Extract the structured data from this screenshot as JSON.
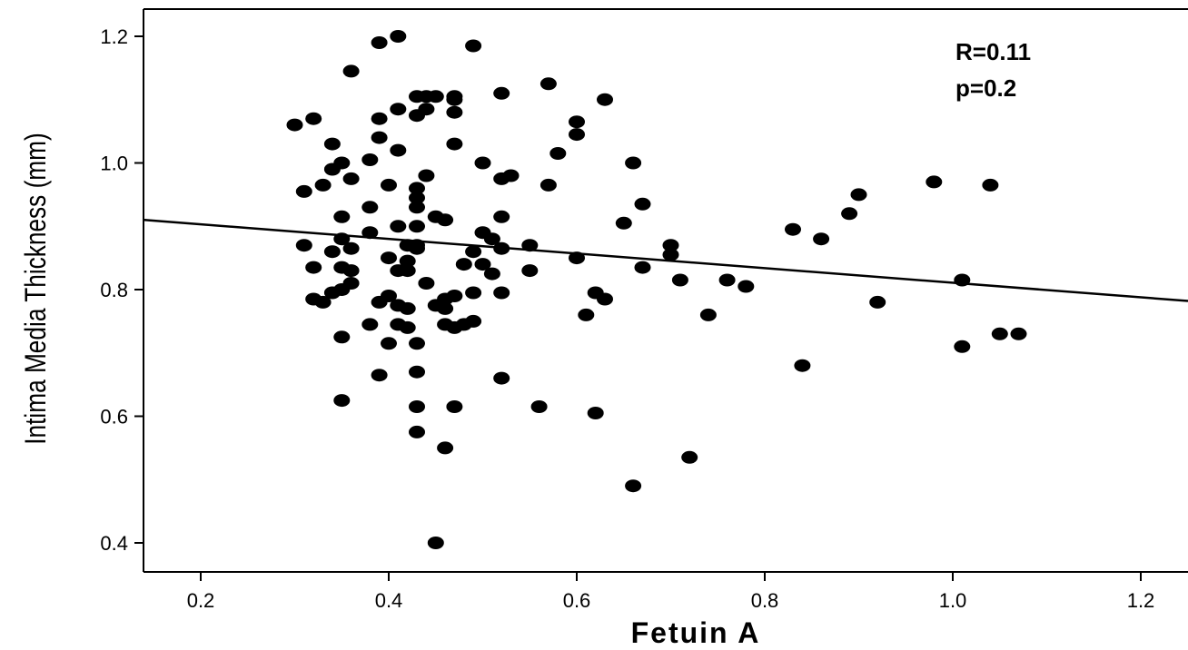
{
  "chart_data": {
    "type": "scatter",
    "xlabel": "Fetuin A",
    "ylabel": "Intima Media Thickness (mm)",
    "xlim": [
      0.14,
      1.26
    ],
    "ylim": [
      0.36,
      1.22
    ],
    "x_ticks": [
      0.2,
      0.4,
      0.6,
      0.8,
      1.0,
      1.2
    ],
    "y_ticks": [
      0.4,
      0.6,
      0.8,
      1.0,
      1.2
    ],
    "x_tick_labels": [
      "0.2",
      "0.4",
      "0.6",
      "0.8",
      "1.0",
      "1.2"
    ],
    "y_tick_labels": [
      "0.4",
      "0.6",
      "0.8",
      "1.0",
      "1.2"
    ],
    "grid": false,
    "annotations": [
      "R=0.11",
      "p=0.2"
    ],
    "fit_line": {
      "x": [
        0.14,
        1.26
      ],
      "y": [
        0.91,
        0.782
      ]
    },
    "points": [
      [
        0.3,
        1.06
      ],
      [
        0.32,
        1.07
      ],
      [
        0.31,
        0.955
      ],
      [
        0.33,
        0.965
      ],
      [
        0.34,
        1.03
      ],
      [
        0.34,
        0.99
      ],
      [
        0.35,
        1.0
      ],
      [
        0.36,
        1.145
      ],
      [
        0.36,
        0.975
      ],
      [
        0.35,
        0.915
      ],
      [
        0.31,
        0.87
      ],
      [
        0.32,
        0.835
      ],
      [
        0.34,
        0.86
      ],
      [
        0.35,
        0.88
      ],
      [
        0.36,
        0.865
      ],
      [
        0.35,
        0.835
      ],
      [
        0.36,
        0.83
      ],
      [
        0.36,
        0.81
      ],
      [
        0.35,
        0.8
      ],
      [
        0.34,
        0.795
      ],
      [
        0.32,
        0.785
      ],
      [
        0.33,
        0.78
      ],
      [
        0.35,
        0.725
      ],
      [
        0.35,
        0.625
      ],
      [
        0.38,
        1.005
      ],
      [
        0.38,
        0.93
      ],
      [
        0.38,
        0.89
      ],
      [
        0.39,
        1.19
      ],
      [
        0.39,
        1.07
      ],
      [
        0.39,
        1.04
      ],
      [
        0.4,
        0.965
      ],
      [
        0.4,
        0.85
      ],
      [
        0.4,
        0.79
      ],
      [
        0.39,
        0.78
      ],
      [
        0.38,
        0.745
      ],
      [
        0.4,
        0.715
      ],
      [
        0.39,
        0.665
      ],
      [
        0.41,
        1.2
      ],
      [
        0.41,
        1.085
      ],
      [
        0.41,
        1.02
      ],
      [
        0.41,
        0.9
      ],
      [
        0.41,
        0.83
      ],
      [
        0.41,
        0.775
      ],
      [
        0.41,
        0.745
      ],
      [
        0.42,
        0.87
      ],
      [
        0.42,
        0.845
      ],
      [
        0.42,
        0.83
      ],
      [
        0.42,
        0.77
      ],
      [
        0.42,
        0.74
      ],
      [
        0.43,
        1.105
      ],
      [
        0.43,
        1.075
      ],
      [
        0.43,
        0.96
      ],
      [
        0.43,
        0.945
      ],
      [
        0.43,
        0.93
      ],
      [
        0.43,
        0.9
      ],
      [
        0.43,
        0.87
      ],
      [
        0.43,
        0.865
      ],
      [
        0.43,
        0.715
      ],
      [
        0.43,
        0.67
      ],
      [
        0.43,
        0.615
      ],
      [
        0.43,
        0.575
      ],
      [
        0.44,
        1.085
      ],
      [
        0.44,
        1.105
      ],
      [
        0.44,
        0.98
      ],
      [
        0.44,
        0.81
      ],
      [
        0.45,
        1.105
      ],
      [
        0.45,
        0.915
      ],
      [
        0.45,
        0.775
      ],
      [
        0.45,
        0.4
      ],
      [
        0.46,
        0.91
      ],
      [
        0.46,
        0.785
      ],
      [
        0.46,
        0.77
      ],
      [
        0.46,
        0.745
      ],
      [
        0.46,
        0.55
      ],
      [
        0.47,
        1.105
      ],
      [
        0.47,
        1.1
      ],
      [
        0.47,
        1.08
      ],
      [
        0.47,
        1.03
      ],
      [
        0.47,
        0.79
      ],
      [
        0.47,
        0.74
      ],
      [
        0.47,
        0.615
      ],
      [
        0.48,
        0.84
      ],
      [
        0.48,
        0.745
      ],
      [
        0.49,
        1.185
      ],
      [
        0.49,
        0.86
      ],
      [
        0.49,
        0.795
      ],
      [
        0.49,
        0.75
      ],
      [
        0.5,
        1.0
      ],
      [
        0.5,
        0.89
      ],
      [
        0.5,
        0.84
      ],
      [
        0.51,
        0.88
      ],
      [
        0.51,
        0.825
      ],
      [
        0.52,
        1.11
      ],
      [
        0.52,
        0.975
      ],
      [
        0.52,
        0.915
      ],
      [
        0.52,
        0.865
      ],
      [
        0.52,
        0.795
      ],
      [
        0.52,
        0.66
      ],
      [
        0.53,
        0.98
      ],
      [
        0.55,
        0.87
      ],
      [
        0.55,
        0.83
      ],
      [
        0.56,
        0.615
      ],
      [
        0.57,
        1.125
      ],
      [
        0.57,
        0.965
      ],
      [
        0.58,
        1.015
      ],
      [
        0.6,
        1.065
      ],
      [
        0.6,
        1.045
      ],
      [
        0.6,
        0.85
      ],
      [
        0.61,
        0.76
      ],
      [
        0.62,
        0.795
      ],
      [
        0.62,
        0.605
      ],
      [
        0.63,
        1.1
      ],
      [
        0.63,
        0.785
      ],
      [
        0.65,
        0.905
      ],
      [
        0.66,
        1.0
      ],
      [
        0.66,
        0.49
      ],
      [
        0.67,
        0.935
      ],
      [
        0.67,
        0.835
      ],
      [
        0.7,
        0.87
      ],
      [
        0.7,
        0.855
      ],
      [
        0.71,
        0.815
      ],
      [
        0.72,
        0.535
      ],
      [
        0.74,
        0.76
      ],
      [
        0.76,
        0.815
      ],
      [
        0.78,
        0.805
      ],
      [
        0.83,
        0.895
      ],
      [
        0.84,
        0.68
      ],
      [
        0.86,
        0.88
      ],
      [
        0.89,
        0.92
      ],
      [
        0.9,
        0.95
      ],
      [
        0.92,
        0.78
      ],
      [
        0.98,
        0.97
      ],
      [
        1.01,
        0.815
      ],
      [
        1.01,
        0.71
      ],
      [
        1.04,
        0.965
      ],
      [
        1.05,
        0.73
      ],
      [
        1.07,
        0.73
      ]
    ]
  }
}
